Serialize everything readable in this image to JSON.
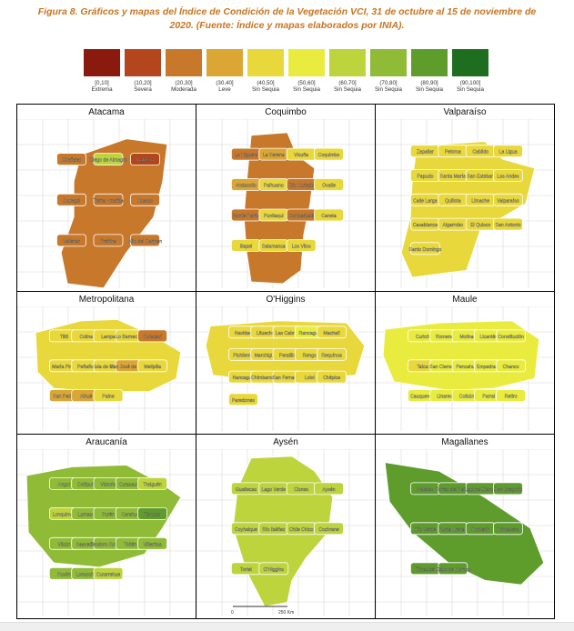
{
  "caption": {
    "line1": "Figura 8. Gráficos y mapas del Índice de Condición de la Vegetación VCI, 31 de octubre al 15 de noviembre de",
    "line2": "2020. (Fuente: Índice y mapas elaborados por INIA)."
  },
  "legend": [
    {
      "range": "[0,10]",
      "label": "Extrema",
      "color": "#8b1a0e"
    },
    {
      "range": "(10,20]",
      "label": "Severa",
      "color": "#b3461c"
    },
    {
      "range": "(20,30]",
      "label": "Moderada",
      "color": "#c8782b"
    },
    {
      "range": "(30,40]",
      "label": "Leve",
      "color": "#dba633"
    },
    {
      "range": "(40,50]",
      "label": "Sin Sequia",
      "color": "#e9d83b"
    },
    {
      "range": "(50,60]",
      "label": "Sin Sequia",
      "color": "#e9ec3f"
    },
    {
      "range": "(60,70]",
      "label": "Sin Sequia",
      "color": "#bed43c"
    },
    {
      "range": "(70,80]",
      "label": "Sin Sequia",
      "color": "#8fbb36"
    },
    {
      "range": "(80,90]",
      "label": "Sin Sequia",
      "color": "#5e9c2c"
    },
    {
      "range": "(90,100]",
      "label": "Sin Sequia",
      "color": "#1f6e20"
    }
  ],
  "regions": [
    {
      "name": "Atacama",
      "comunas": [
        "Chañaral",
        "Diego de Almagro",
        "Caldera",
        "Copiapó",
        "Tierra Amarilla",
        "Huasco",
        "Vallenar",
        "Freirina",
        "Alto del Carmen"
      ]
    },
    {
      "name": "Coquimbo",
      "comunas": [
        "La Higuera",
        "La Serena",
        "Vicuña",
        "Coquimbo",
        "Andacollo",
        "Paihuano",
        "Río Hurtado",
        "Ovalle",
        "Monte Patria",
        "Punitaqui",
        "Combarbalá",
        "Canela",
        "Illapel",
        "Salamanca",
        "Los Vilos"
      ]
    },
    {
      "name": "Valparaíso",
      "comunas": [
        "Zapallar",
        "Petorca",
        "Cabildo",
        "La Ligua",
        "Papudo",
        "Santa María",
        "San Esteban",
        "Los Andes",
        "Calle Larga",
        "Quillota",
        "Limache",
        "Valparaíso",
        "Casablanca",
        "Algarrobo",
        "El Quisco",
        "San Antonio",
        "Santo Domingo"
      ]
    },
    {
      "name": "Metropolitana",
      "comunas": [
        "Tiltil",
        "Colina",
        "Lampa",
        "Lo Barnechea",
        "Curacaví",
        "María Pinto",
        "Peñaflor",
        "Isla de Maipo",
        "San José de Maipo",
        "Melipilla",
        "San Pedro",
        "Alhué",
        "Paine"
      ]
    },
    {
      "name": "O'Higgins",
      "comunas": [
        "Navidad",
        "Litueche",
        "Las Cabras",
        "Rancagua",
        "Machalí",
        "Pichilemu",
        "Marchigüe",
        "Peralillo",
        "Rengo",
        "Requínoa",
        "Nancagua",
        "Chimbarongo",
        "San Fernando",
        "Lolol",
        "Chépica",
        "Paredones"
      ]
    },
    {
      "name": "Maule",
      "comunas": [
        "Curicó",
        "Romeral",
        "Molina",
        "Licantén",
        "Constitución",
        "Talca",
        "San Clemente",
        "Pencahue",
        "Empedrado",
        "Chanco",
        "Cauquenes",
        "Linares",
        "Colbún",
        "Parral",
        "Retiro"
      ]
    },
    {
      "name": "Araucanía",
      "comunas": [
        "Angol",
        "Collipulli",
        "Victoria",
        "Curacautín",
        "Traiguén",
        "Lonquimay",
        "Lumaco",
        "Purén",
        "Carahue",
        "Temuco",
        "Vilcún",
        "Saavedra",
        "Teodoro Schmidt",
        "Toltén",
        "Villarrica",
        "Pucón",
        "Loncoche",
        "Curarrehue"
      ]
    },
    {
      "name": "Aysén",
      "comunas": [
        "Guaitecas",
        "Lago Verde",
        "Cisnes",
        "Aysén",
        "Coyhaique",
        "Río Ibáñez",
        "Chile Chico",
        "Cochrane",
        "Tortel",
        "O'Higgins"
      ]
    },
    {
      "name": "Magallanes",
      "comunas": [
        "Natales",
        "Torres del Paine",
        "Laguna Blanca",
        "San Gregorio",
        "Río Verde",
        "Punta Arenas",
        "Porvenir",
        "Primavera",
        "Timaukel",
        "Cabo de Hornos"
      ]
    }
  ],
  "scale_bar": {
    "zero": "0",
    "distance": "250 Km"
  }
}
